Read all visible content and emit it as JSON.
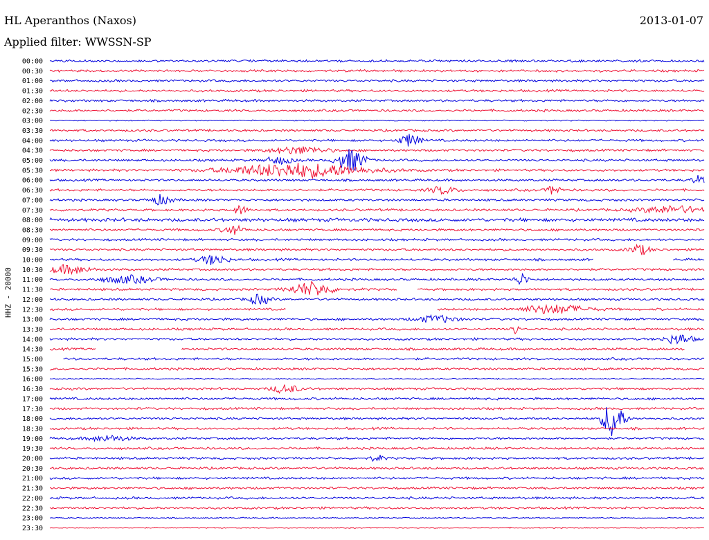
{
  "header": {
    "station": "HL Aperanthos (Naxos)",
    "date": "2013-01-07",
    "filter_label": "Applied filter:",
    "filter_value": "WWSSN-SP"
  },
  "colors": {
    "trace_even": "#0000dd",
    "trace_odd": "#ee1133"
  },
  "chart_data": {
    "type": "line",
    "title": "HL Aperanthos (Naxos)",
    "ylabel": "HHZ - 20000",
    "xlabel": "",
    "categories": [
      "00:00",
      "00:30",
      "01:00",
      "01:30",
      "02:00",
      "02:30",
      "03:00",
      "03:30",
      "04:00",
      "04:30",
      "05:00",
      "05:30",
      "06:00",
      "06:30",
      "07:00",
      "07:30",
      "08:00",
      "08:30",
      "09:00",
      "09:30",
      "10:00",
      "10:30",
      "11:00",
      "11:30",
      "12:00",
      "12:30",
      "13:00",
      "13:30",
      "14:00",
      "14:30",
      "15:00",
      "15:30",
      "16:00",
      "16:30",
      "17:00",
      "17:30",
      "18:00",
      "18:30",
      "19:00",
      "19:30",
      "20:00",
      "20:30",
      "21:00",
      "21:30",
      "22:00",
      "22:30",
      "23:00",
      "23:30"
    ],
    "noise": [
      2,
      2,
      2,
      2,
      2,
      2,
      1,
      2,
      2,
      2,
      2,
      2,
      2,
      2,
      2,
      2,
      3,
      2,
      2,
      2,
      2,
      2,
      2,
      2,
      2,
      2,
      2,
      2,
      2,
      2,
      2,
      2,
      1,
      2,
      2,
      2,
      2,
      2,
      2,
      2,
      2,
      2,
      2,
      2,
      2,
      2,
      1,
      1
    ],
    "events": [
      {
        "row": "04:00",
        "t": 0.55,
        "amp": 9,
        "dur": 0.015
      },
      {
        "row": "04:30",
        "t": 0.38,
        "amp": 5,
        "dur": 0.04
      },
      {
        "row": "05:00",
        "t": 0.46,
        "amp": 16,
        "dur": 0.02
      },
      {
        "row": "05:00",
        "t": 0.35,
        "amp": 5,
        "dur": 0.02
      },
      {
        "row": "05:30",
        "t": 0.38,
        "amp": 10,
        "dur": 0.1
      },
      {
        "row": "06:00",
        "t": 0.99,
        "amp": 6,
        "dur": 0.01
      },
      {
        "row": "06:30",
        "t": 0.77,
        "amp": 7,
        "dur": 0.01
      },
      {
        "row": "06:30",
        "t": 0.6,
        "amp": 5,
        "dur": 0.02
      },
      {
        "row": "07:00",
        "t": 0.17,
        "amp": 7,
        "dur": 0.015
      },
      {
        "row": "07:30",
        "t": 0.29,
        "amp": 6,
        "dur": 0.01
      },
      {
        "row": "07:30",
        "t": 0.95,
        "amp": 5,
        "dur": 0.05
      },
      {
        "row": "08:30",
        "t": 0.28,
        "amp": 6,
        "dur": 0.015
      },
      {
        "row": "09:30",
        "t": 0.9,
        "amp": 7,
        "dur": 0.015
      },
      {
        "row": "10:00",
        "t": 0.25,
        "amp": 7,
        "dur": 0.02
      },
      {
        "row": "10:30",
        "t": 0.03,
        "amp": 6,
        "dur": 0.03
      },
      {
        "row": "11:00",
        "t": 0.72,
        "amp": 8,
        "dur": 0.01
      },
      {
        "row": "11:00",
        "t": 0.12,
        "amp": 5,
        "dur": 0.04
      },
      {
        "row": "11:30",
        "t": 0.4,
        "amp": 10,
        "dur": 0.03
      },
      {
        "row": "12:00",
        "t": 0.32,
        "amp": 7,
        "dur": 0.015
      },
      {
        "row": "12:30",
        "t": 0.77,
        "amp": 6,
        "dur": 0.05
      },
      {
        "row": "13:00",
        "t": 0.59,
        "amp": 5,
        "dur": 0.03
      },
      {
        "row": "13:30",
        "t": 0.71,
        "amp": 8,
        "dur": 0.005
      },
      {
        "row": "14:00",
        "t": 0.96,
        "amp": 7,
        "dur": 0.02
      },
      {
        "row": "16:30",
        "t": 0.36,
        "amp": 6,
        "dur": 0.02
      },
      {
        "row": "18:00",
        "t": 0.86,
        "amp": 28,
        "dur": 0.015
      },
      {
        "row": "19:00",
        "t": 0.09,
        "amp": 4,
        "dur": 0.03
      },
      {
        "row": "20:00",
        "t": 0.5,
        "amp": 4,
        "dur": 0.01
      }
    ],
    "gaps": [
      {
        "row": "10:00",
        "start": 0.83,
        "end": 0.95
      },
      {
        "row": "11:30",
        "start": 0.53,
        "end": 0.56
      },
      {
        "row": "12:30",
        "start": 0.36,
        "end": 0.59
      },
      {
        "row": "14:30",
        "start": 0.07,
        "end": 0.2
      },
      {
        "row": "14:30",
        "start": 0.97,
        "end": 1.0
      },
      {
        "row": "15:00",
        "start": 0.0,
        "end": 0.02
      }
    ],
    "grid": false,
    "legend": "none"
  }
}
